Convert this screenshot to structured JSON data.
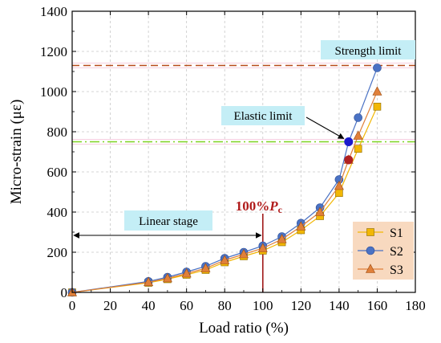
{
  "chart_data": {
    "type": "line",
    "xlabel": "Load ratio (%)",
    "ylabel": "Micro-strain (με)",
    "xlim": [
      0,
      180
    ],
    "ylim": [
      0,
      1400
    ],
    "xticks": [
      0,
      20,
      40,
      60,
      80,
      100,
      120,
      140,
      160,
      180
    ],
    "yticks": [
      0,
      200,
      400,
      600,
      800,
      1000,
      1200,
      1400
    ],
    "grid": true,
    "legend_position": "bottom-right",
    "series": [
      {
        "name": "S1",
        "color": "#f2b705",
        "marker": "square",
        "points": [
          [
            0,
            0
          ],
          [
            40,
            48
          ],
          [
            50,
            66
          ],
          [
            60,
            88
          ],
          [
            70,
            112
          ],
          [
            80,
            150
          ],
          [
            90,
            180
          ],
          [
            100,
            208
          ],
          [
            110,
            250
          ],
          [
            120,
            310
          ],
          [
            130,
            380
          ],
          [
            140,
            495
          ],
          [
            150,
            715
          ],
          [
            160,
            925
          ]
        ]
      },
      {
        "name": "S2",
        "color": "#4a72c4",
        "marker": "circle",
        "points": [
          [
            0,
            0
          ],
          [
            40,
            55
          ],
          [
            50,
            76
          ],
          [
            60,
            102
          ],
          [
            70,
            130
          ],
          [
            80,
            170
          ],
          [
            90,
            200
          ],
          [
            100,
            232
          ],
          [
            110,
            278
          ],
          [
            120,
            345
          ],
          [
            130,
            422
          ],
          [
            140,
            562
          ],
          [
            145,
            750
          ],
          [
            150,
            870
          ],
          [
            160,
            1118
          ]
        ]
      },
      {
        "name": "S3",
        "color": "#e0803a",
        "marker": "triangle",
        "points": [
          [
            0,
            0
          ],
          [
            40,
            51
          ],
          [
            50,
            70
          ],
          [
            60,
            94
          ],
          [
            70,
            120
          ],
          [
            80,
            160
          ],
          [
            90,
            190
          ],
          [
            100,
            220
          ],
          [
            110,
            265
          ],
          [
            120,
            328
          ],
          [
            130,
            400
          ],
          [
            140,
            530
          ],
          [
            145,
            660
          ],
          [
            150,
            780
          ],
          [
            160,
            1000
          ]
        ]
      }
    ],
    "highlight_points": [
      {
        "x": 145,
        "y": 750,
        "color": "#1a1acc"
      },
      {
        "x": 145,
        "y": 660,
        "color": "#b02020"
      }
    ],
    "reference_lines": [
      {
        "label": "Strength limit",
        "y": 1130,
        "color": "#b84a1a",
        "style": "dashed"
      },
      {
        "label": "Elastic limit",
        "y": 750,
        "color": "#7ed321",
        "style": "dashdot"
      }
    ],
    "vertical_line": {
      "x": 100,
      "color": "#a01818"
    },
    "pc_label": {
      "prefix": "100%",
      "symbol": "P",
      "subscript": "c"
    },
    "linear_stage": {
      "label": "Linear stage",
      "x_start": 0,
      "x_end": 100
    }
  }
}
